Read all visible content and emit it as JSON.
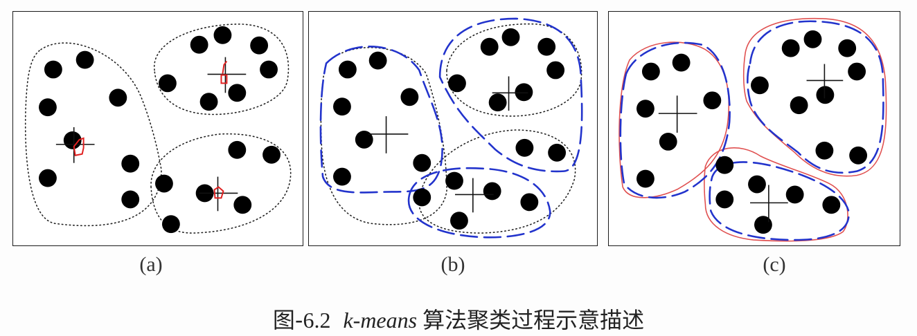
{
  "figure": {
    "panels": [
      {
        "id": "a",
        "label": "(a)"
      },
      {
        "id": "b",
        "label": "(b)"
      },
      {
        "id": "c",
        "label": "(c)"
      }
    ],
    "caption": {
      "prefix": "图-",
      "number": "6.2",
      "algorithm": "k-means",
      "suffix": "算法聚类过程示意描述"
    }
  }
}
